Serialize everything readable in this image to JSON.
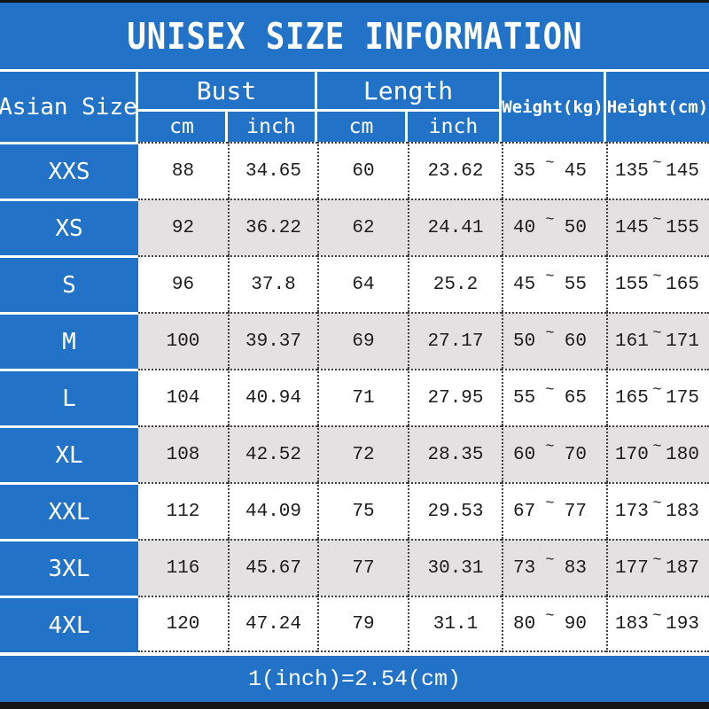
{
  "title": "UNISEX SIZE INFORMATION",
  "footer_note": "1(inch)=2.54(cm)",
  "glyphs": {
    "tilde": "~"
  },
  "colors": {
    "accent_blue": "#2272c7",
    "alt_row_gray": "#e3e1e2",
    "bar_black": "#141414",
    "text_white": "#ffffff",
    "text_dark": "#1c1c1c"
  },
  "table": {
    "size_col_header": "Asian Size",
    "group_headers": {
      "bust": "Bust",
      "length": "Length"
    },
    "sub_headers": {
      "bust_cm": "cm",
      "bust_inch": "inch",
      "length_cm": "cm",
      "length_inch": "inch"
    },
    "single_headers": {
      "weight": "Weight(kg)",
      "height": "Height(cm)"
    },
    "rows": [
      {
        "size": "XXS",
        "bust_cm": "88",
        "bust_inch": "34.65",
        "length_cm": "60",
        "length_inch": "23.62",
        "weight_min": "35",
        "weight_max": "45",
        "height_min": "135",
        "height_max": "145"
      },
      {
        "size": "XS",
        "bust_cm": "92",
        "bust_inch": "36.22",
        "length_cm": "62",
        "length_inch": "24.41",
        "weight_min": "40",
        "weight_max": "50",
        "height_min": "145",
        "height_max": "155"
      },
      {
        "size": "S",
        "bust_cm": "96",
        "bust_inch": "37.8",
        "length_cm": "64",
        "length_inch": "25.2",
        "weight_min": "45",
        "weight_max": "55",
        "height_min": "155",
        "height_max": "165"
      },
      {
        "size": "M",
        "bust_cm": "100",
        "bust_inch": "39.37",
        "length_cm": "69",
        "length_inch": "27.17",
        "weight_min": "50",
        "weight_max": "60",
        "height_min": "161",
        "height_max": "171"
      },
      {
        "size": "L",
        "bust_cm": "104",
        "bust_inch": "40.94",
        "length_cm": "71",
        "length_inch": "27.95",
        "weight_min": "55",
        "weight_max": "65",
        "height_min": "165",
        "height_max": "175"
      },
      {
        "size": "XL",
        "bust_cm": "108",
        "bust_inch": "42.52",
        "length_cm": "72",
        "length_inch": "28.35",
        "weight_min": "60",
        "weight_max": "70",
        "height_min": "170",
        "height_max": "180"
      },
      {
        "size": "XXL",
        "bust_cm": "112",
        "bust_inch": "44.09",
        "length_cm": "75",
        "length_inch": "29.53",
        "weight_min": "67",
        "weight_max": "77",
        "height_min": "173",
        "height_max": "183"
      },
      {
        "size": "3XL",
        "bust_cm": "116",
        "bust_inch": "45.67",
        "length_cm": "77",
        "length_inch": "30.31",
        "weight_min": "73",
        "weight_max": "83",
        "height_min": "177",
        "height_max": "187"
      },
      {
        "size": "4XL",
        "bust_cm": "120",
        "bust_inch": "47.24",
        "length_cm": "79",
        "length_inch": "31.1",
        "weight_min": "80",
        "weight_max": "90",
        "height_min": "183",
        "height_max": "193"
      }
    ]
  },
  "chart_data": {
    "type": "table",
    "title": "UNISEX SIZE INFORMATION",
    "columns": [
      "Asian Size",
      "Bust cm",
      "Bust inch",
      "Length cm",
      "Length inch",
      "Weight(kg)",
      "Height(cm)"
    ],
    "rows": [
      [
        "XXS",
        88,
        34.65,
        60,
        23.62,
        "35~45",
        "135~145"
      ],
      [
        "XS",
        92,
        36.22,
        62,
        24.41,
        "40~50",
        "145~155"
      ],
      [
        "S",
        96,
        37.8,
        64,
        25.2,
        "45~55",
        "155~165"
      ],
      [
        "M",
        100,
        39.37,
        69,
        27.17,
        "50~60",
        "161~171"
      ],
      [
        "L",
        104,
        40.94,
        71,
        27.95,
        "55~65",
        "165~175"
      ],
      [
        "XL",
        108,
        42.52,
        72,
        28.35,
        "60~70",
        "170~180"
      ],
      [
        "XXL",
        112,
        44.09,
        75,
        29.53,
        "67~77",
        "173~183"
      ],
      [
        "3XL",
        116,
        45.67,
        77,
        30.31,
        "73~83",
        "177~187"
      ],
      [
        "4XL",
        120,
        47.24,
        79,
        31.1,
        "80~90",
        "183~193"
      ]
    ],
    "footnote": "1(inch)=2.54(cm)"
  }
}
